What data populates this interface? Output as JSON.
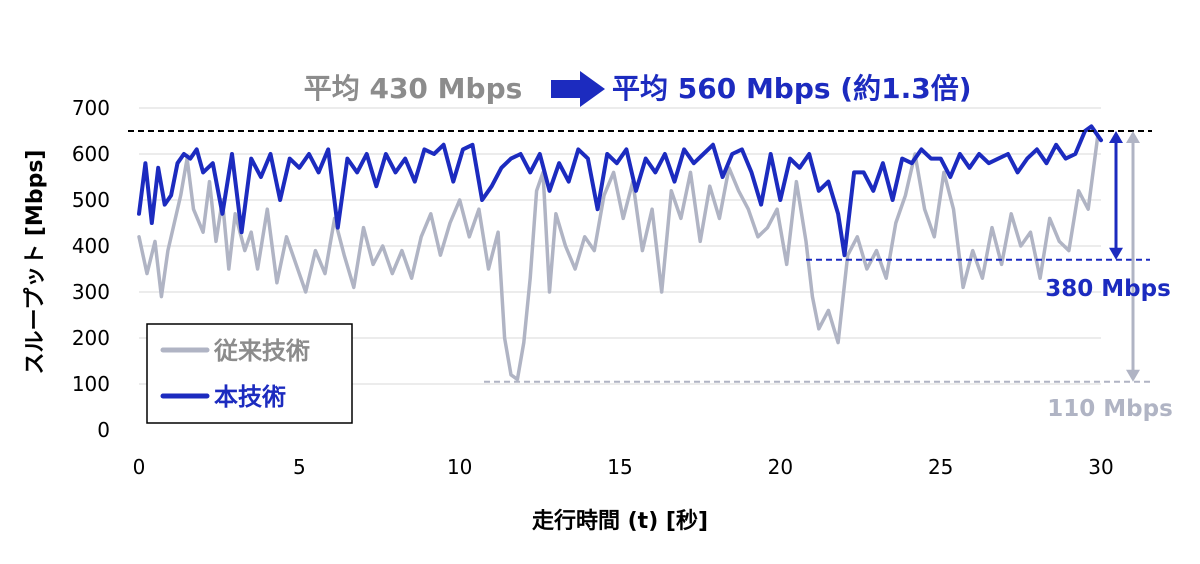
{
  "chart_data": {
    "type": "line",
    "headline": {
      "before": "平均 430 Mbps",
      "after": "平均 560 Mbps (約1.3倍)"
    },
    "xlabel": "走行時間 (t) [秒]",
    "ylabel": "スループット [Mbps]",
    "xlim": [
      0,
      30
    ],
    "ylim": [
      0,
      700
    ],
    "xticks": [
      "0",
      "5",
      "10",
      "15",
      "20",
      "25",
      "30"
    ],
    "yticks": [
      "0",
      "100",
      "200",
      "300",
      "400",
      "500",
      "600",
      "700"
    ],
    "grid": "horizontal",
    "legend_position": "bottom-left",
    "colors": {
      "conventional": "#b0b4c4",
      "proposed": "#1c2bbf",
      "peak_line": "#000000",
      "headline_arrow": "#1c2bbf"
    },
    "annotations": {
      "peak_y": 650,
      "proposed_min_y": 370,
      "proposed_min_label": "380 Mbps",
      "conventional_min_y": 105,
      "conventional_min_label": "110 Mbps"
    },
    "series": [
      {
        "name": "従来技術",
        "key": "conventional",
        "x": [
          0,
          0.25,
          0.5,
          0.7,
          0.9,
          1.1,
          1.3,
          1.5,
          1.7,
          2.0,
          2.2,
          2.4,
          2.6,
          2.8,
          3.0,
          3.3,
          3.5,
          3.7,
          4.0,
          4.3,
          4.6,
          4.9,
          5.2,
          5.5,
          5.8,
          6.1,
          6.4,
          6.7,
          7.0,
          7.3,
          7.6,
          7.9,
          8.2,
          8.5,
          8.8,
          9.1,
          9.4,
          9.7,
          10.0,
          10.3,
          10.6,
          10.9,
          11.2,
          11.4,
          11.6,
          11.8,
          12.0,
          12.2,
          12.4,
          12.6,
          12.8,
          13.0,
          13.3,
          13.6,
          13.9,
          14.2,
          14.5,
          14.8,
          15.1,
          15.4,
          15.7,
          16.0,
          16.3,
          16.6,
          16.9,
          17.2,
          17.5,
          17.8,
          18.1,
          18.4,
          18.7,
          19.0,
          19.3,
          19.6,
          19.9,
          20.2,
          20.5,
          20.8,
          21.0,
          21.2,
          21.5,
          21.8,
          22.1,
          22.4,
          22.7,
          23.0,
          23.3,
          23.6,
          23.9,
          24.2,
          24.5,
          24.8,
          25.1,
          25.4,
          25.7,
          26.0,
          26.3,
          26.6,
          26.9,
          27.2,
          27.5,
          27.8,
          28.1,
          28.4,
          28.7,
          29.0,
          29.3,
          29.6,
          29.9
        ],
        "values": [
          420,
          340,
          410,
          290,
          390,
          450,
          510,
          590,
          480,
          430,
          540,
          410,
          500,
          350,
          470,
          390,
          430,
          350,
          480,
          320,
          420,
          360,
          300,
          390,
          340,
          460,
          380,
          310,
          440,
          360,
          400,
          340,
          390,
          330,
          420,
          470,
          380,
          450,
          500,
          420,
          480,
          350,
          430,
          200,
          120,
          110,
          190,
          330,
          520,
          560,
          300,
          470,
          400,
          350,
          420,
          390,
          510,
          560,
          460,
          540,
          390,
          480,
          300,
          520,
          460,
          560,
          410,
          530,
          460,
          570,
          520,
          480,
          420,
          440,
          480,
          360,
          540,
          410,
          290,
          220,
          260,
          190,
          380,
          420,
          350,
          390,
          330,
          450,
          510,
          600,
          480,
          420,
          560,
          480,
          310,
          390,
          330,
          440,
          360,
          470,
          400,
          430,
          330,
          460,
          410,
          390,
          520,
          480,
          640
        ]
      },
      {
        "name": "本技術",
        "key": "proposed",
        "x": [
          0,
          0.2,
          0.4,
          0.6,
          0.8,
          1.0,
          1.2,
          1.4,
          1.6,
          1.8,
          2.0,
          2.3,
          2.6,
          2.9,
          3.2,
          3.5,
          3.8,
          4.1,
          4.4,
          4.7,
          5.0,
          5.3,
          5.6,
          5.9,
          6.2,
          6.5,
          6.8,
          7.1,
          7.4,
          7.7,
          8.0,
          8.3,
          8.6,
          8.9,
          9.2,
          9.5,
          9.8,
          10.1,
          10.4,
          10.7,
          11.0,
          11.3,
          11.6,
          11.9,
          12.2,
          12.5,
          12.8,
          13.1,
          13.4,
          13.7,
          14.0,
          14.3,
          14.6,
          14.9,
          15.2,
          15.5,
          15.8,
          16.1,
          16.4,
          16.7,
          17.0,
          17.3,
          17.6,
          17.9,
          18.2,
          18.5,
          18.8,
          19.1,
          19.4,
          19.7,
          20.0,
          20.3,
          20.6,
          20.9,
          21.2,
          21.5,
          21.8,
          22.0,
          22.3,
          22.6,
          22.9,
          23.2,
          23.5,
          23.8,
          24.1,
          24.4,
          24.7,
          25.0,
          25.3,
          25.6,
          25.9,
          26.2,
          26.5,
          26.8,
          27.1,
          27.4,
          27.7,
          28.0,
          28.3,
          28.6,
          28.9,
          29.2,
          29.5,
          29.7,
          30.0
        ],
        "values": [
          470,
          580,
          450,
          570,
          490,
          510,
          580,
          600,
          590,
          610,
          560,
          580,
          470,
          600,
          430,
          590,
          550,
          600,
          500,
          590,
          570,
          600,
          560,
          610,
          440,
          590,
          560,
          600,
          530,
          600,
          560,
          590,
          540,
          610,
          600,
          620,
          540,
          610,
          620,
          500,
          530,
          570,
          590,
          600,
          560,
          600,
          520,
          580,
          540,
          610,
          590,
          480,
          600,
          580,
          610,
          520,
          590,
          560,
          600,
          540,
          610,
          580,
          600,
          620,
          550,
          600,
          610,
          560,
          490,
          600,
          500,
          590,
          570,
          600,
          520,
          540,
          470,
          380,
          560,
          560,
          520,
          580,
          500,
          590,
          580,
          610,
          590,
          590,
          550,
          600,
          570,
          600,
          580,
          590,
          600,
          560,
          590,
          610,
          580,
          620,
          590,
          600,
          650,
          660,
          630
        ]
      }
    ]
  }
}
